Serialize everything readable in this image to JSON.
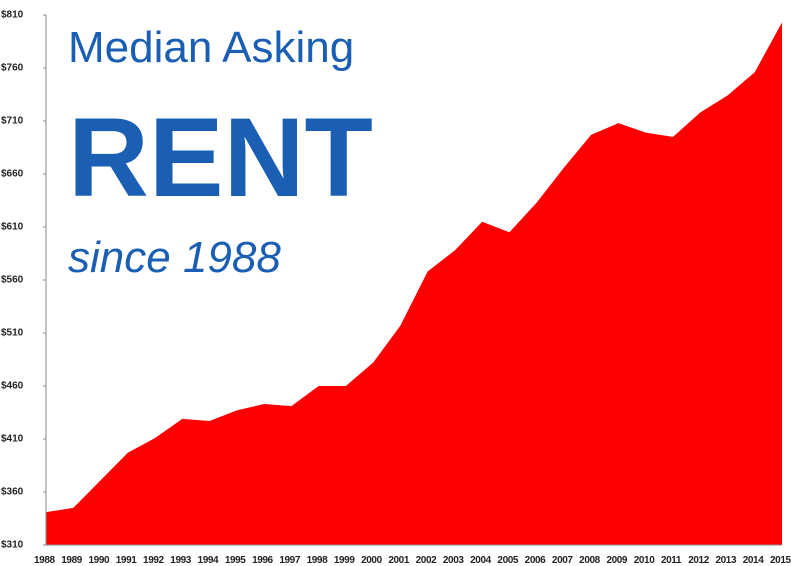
{
  "chart_data": {
    "type": "area",
    "title_lines": [
      "Median Asking",
      "RENT",
      "since 1988"
    ],
    "categories": [
      "1988",
      "1989",
      "1990",
      "1991",
      "1992",
      "1993",
      "1994",
      "1995",
      "1996",
      "1997",
      "1998",
      "1999",
      "2000",
      "2001",
      "2002",
      "2003",
      "2004",
      "2005",
      "2006",
      "2007",
      "2008",
      "2009",
      "2010",
      "2011",
      "2012",
      "2013",
      "2014",
      "2015"
    ],
    "values": [
      341,
      345,
      371,
      397,
      411,
      429,
      427,
      437,
      443,
      441,
      460,
      460,
      482,
      517,
      568,
      588,
      615,
      605,
      633,
      666,
      697,
      708,
      699,
      695,
      718,
      734,
      756,
      803
    ],
    "color": "#ff0000",
    "ylim": [
      310,
      810
    ],
    "yticks": [
      {
        "value": 310,
        "label": "$310"
      },
      {
        "value": 360,
        "label": "$360"
      },
      {
        "value": 410,
        "label": "$410"
      },
      {
        "value": 460,
        "label": "$460"
      },
      {
        "value": 510,
        "label": "$510"
      },
      {
        "value": 560,
        "label": "$560"
      },
      {
        "value": 610,
        "label": "$610"
      },
      {
        "value": 660,
        "label": "$660"
      },
      {
        "value": 710,
        "label": "$710"
      },
      {
        "value": 760,
        "label": "$760"
      },
      {
        "value": 810,
        "label": "$810"
      }
    ],
    "grid": false
  }
}
